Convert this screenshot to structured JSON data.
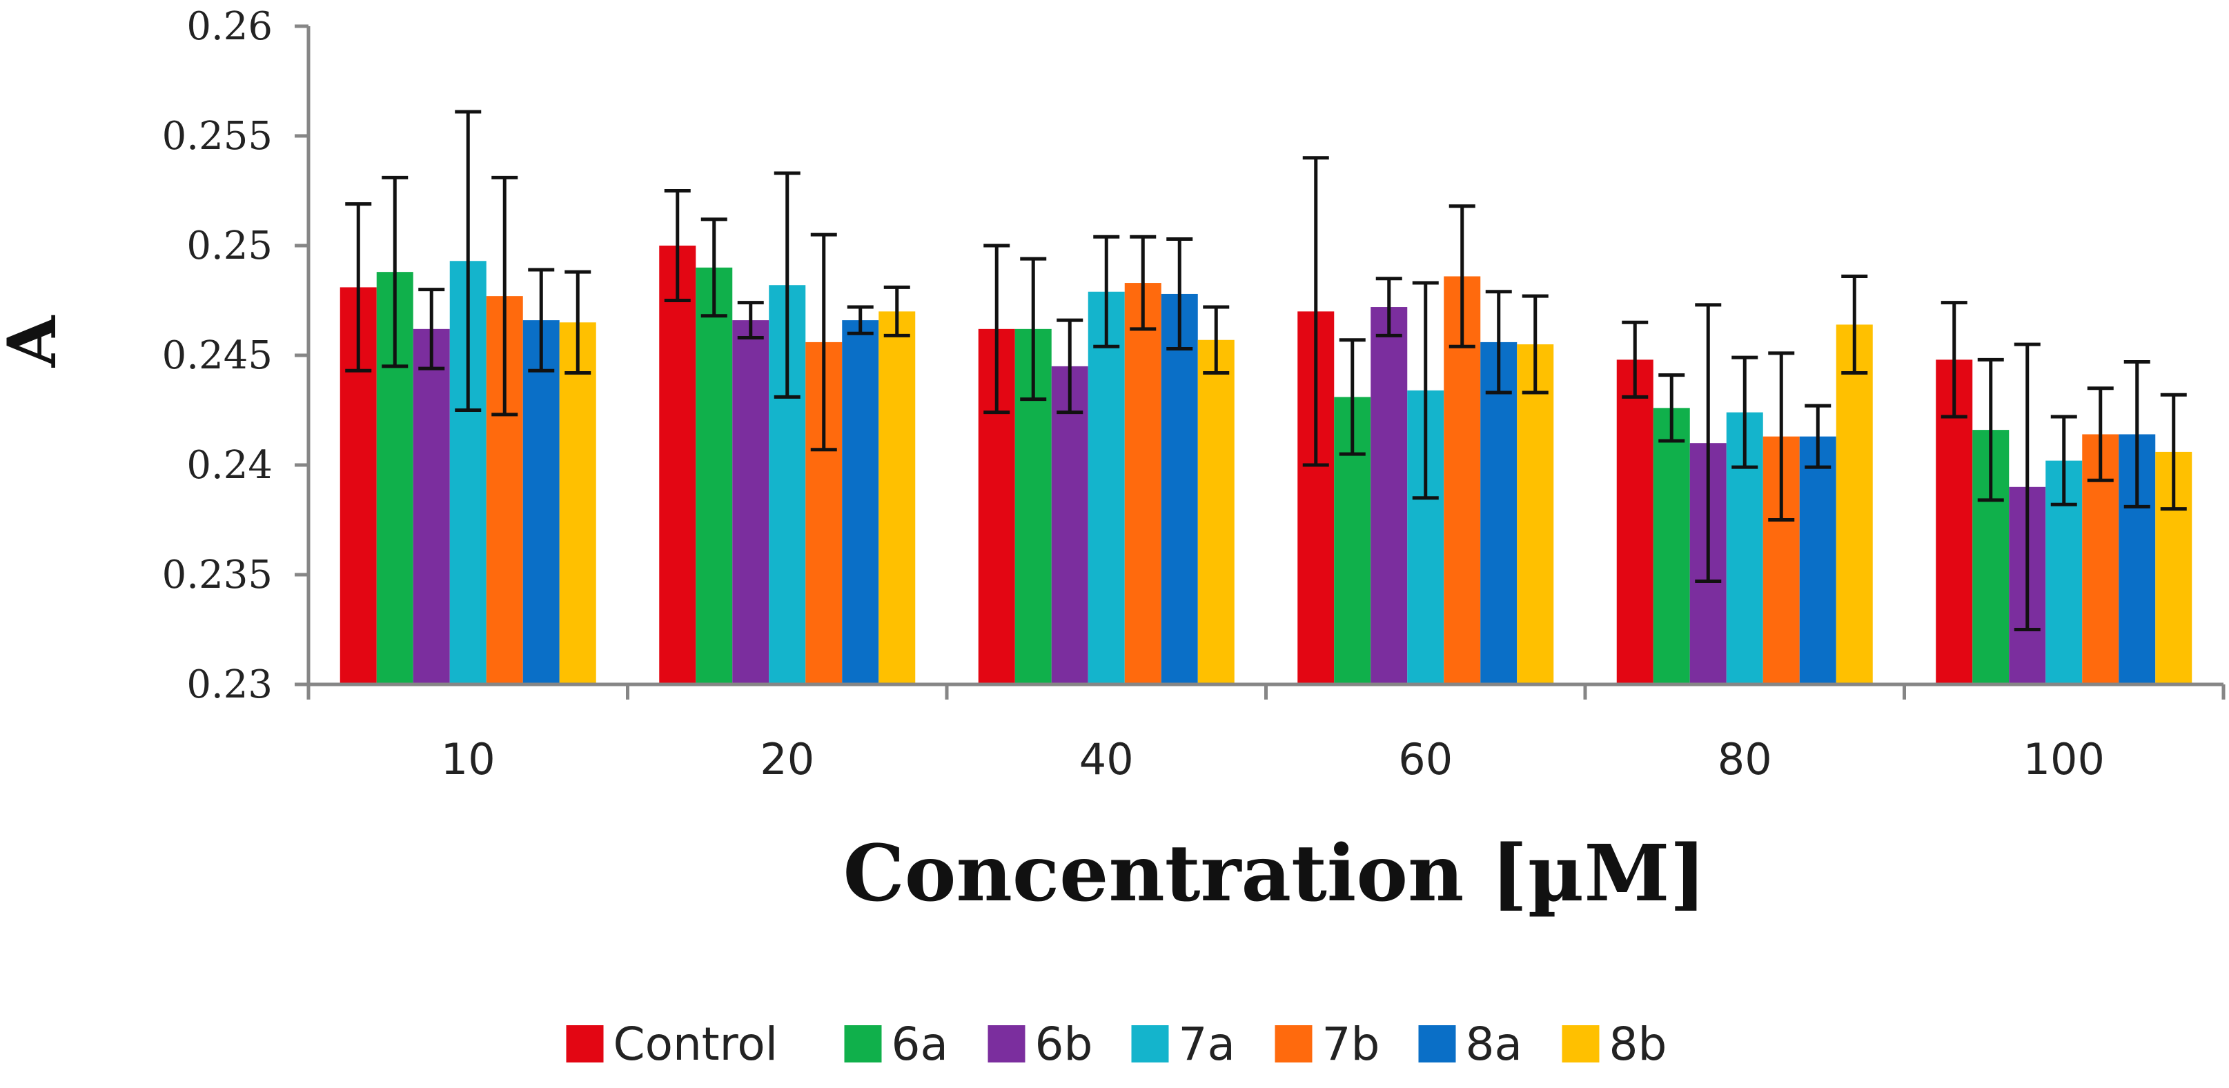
{
  "chart_data": {
    "type": "bar",
    "title": "",
    "xlabel": "Concentration [µM]",
    "ylabel": "A",
    "ylim": [
      0.23,
      0.26
    ],
    "ytick_values": [
      0.23,
      0.235,
      0.24,
      0.245,
      0.25,
      0.255,
      0.26
    ],
    "ytick_labels": [
      "0.23",
      "0.235",
      "0.24",
      "0.245",
      "0.25",
      "0.255",
      "0.26"
    ],
    "categories": [
      "10",
      "20",
      "40",
      "60",
      "80",
      "100"
    ],
    "grid": false,
    "legend_position": "bottom",
    "error_bars": true,
    "series": [
      {
        "name": "Control",
        "color": "#E30613",
        "values": [
          0.2481,
          0.25,
          0.2462,
          0.247,
          0.2448,
          0.2448
        ],
        "errors": [
          0.0038,
          0.0025,
          0.0038,
          0.007,
          0.0017,
          0.0026
        ]
      },
      {
        "name": "6a",
        "color": "#10B04B",
        "values": [
          0.2488,
          0.249,
          0.2462,
          0.2431,
          0.2426,
          0.2416
        ],
        "errors": [
          0.0043,
          0.0022,
          0.0032,
          0.0026,
          0.0015,
          0.0032
        ]
      },
      {
        "name": "6b",
        "color": "#7B2E9E",
        "values": [
          0.2462,
          0.2466,
          0.2445,
          0.2472,
          0.241,
          0.239
        ],
        "errors": [
          0.0018,
          0.0008,
          0.0021,
          0.0013,
          0.0063,
          0.0065
        ]
      },
      {
        "name": "7a",
        "color": "#14B4CC",
        "values": [
          0.2493,
          0.2482,
          0.2479,
          0.2434,
          0.2424,
          0.2402
        ],
        "errors": [
          0.0068,
          0.0051,
          0.0025,
          0.0049,
          0.0025,
          0.002
        ]
      },
      {
        "name": "7b",
        "color": "#FF6A0D",
        "values": [
          0.2477,
          0.2456,
          0.2483,
          0.2486,
          0.2413,
          0.2414
        ],
        "errors": [
          0.0054,
          0.0049,
          0.0021,
          0.0032,
          0.0038,
          0.0021
        ]
      },
      {
        "name": "8a",
        "color": "#0A6FC7",
        "values": [
          0.2466,
          0.2466,
          0.2478,
          0.2456,
          0.2413,
          0.2414
        ],
        "errors": [
          0.0023,
          0.0006,
          0.0025,
          0.0023,
          0.0014,
          0.0033
        ]
      },
      {
        "name": "8b",
        "color": "#FFC000",
        "values": [
          0.2465,
          0.247,
          0.2457,
          0.2455,
          0.2464,
          0.2406
        ],
        "errors": [
          0.0023,
          0.0011,
          0.0015,
          0.0022,
          0.0022,
          0.0026
        ]
      }
    ]
  }
}
